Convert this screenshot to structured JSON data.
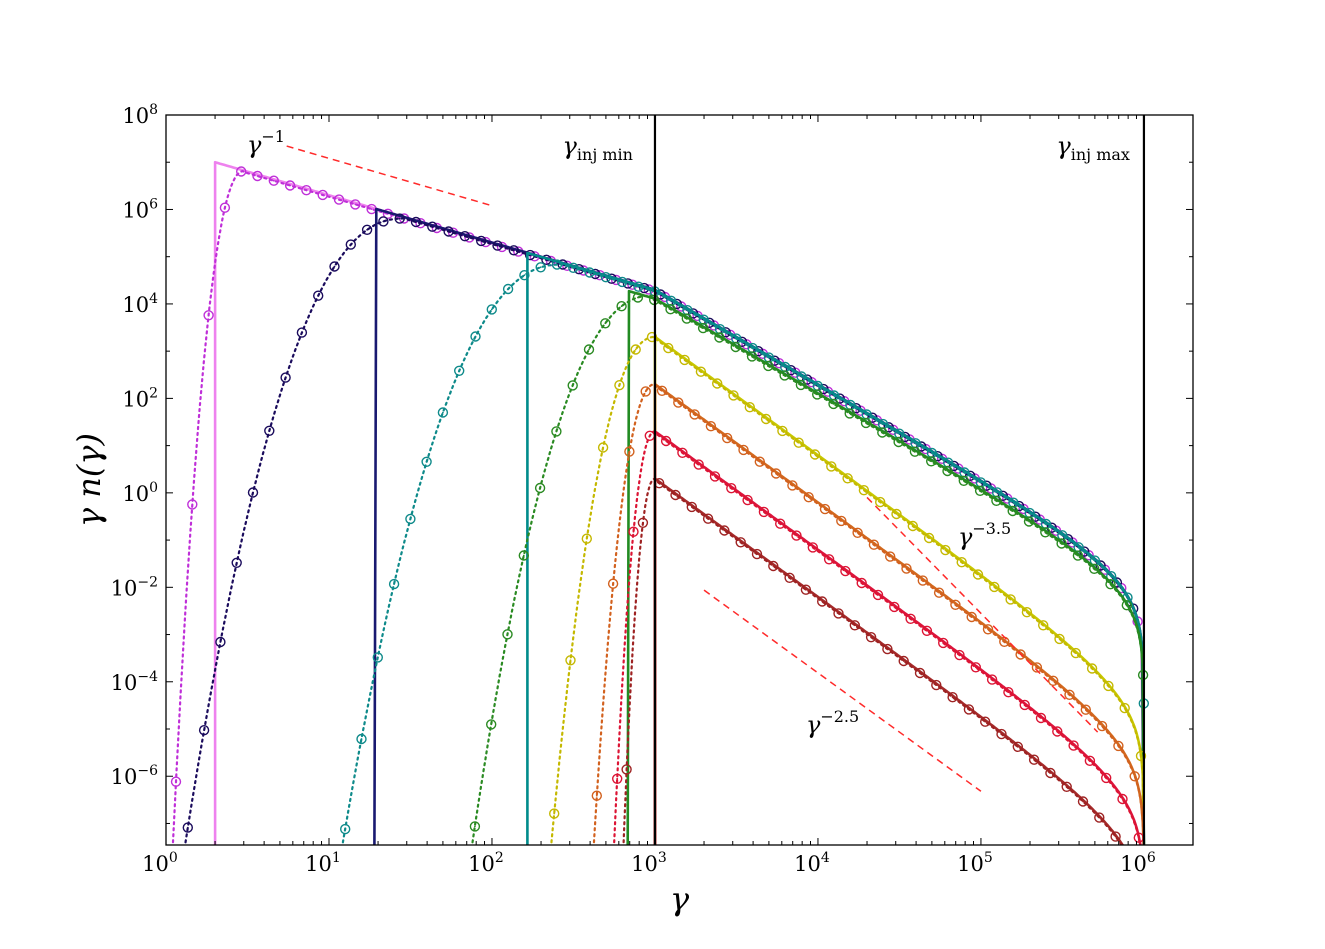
{
  "chart_data": {
    "type": "line",
    "xlabel": "γ",
    "ylabel": "γ n(γ)",
    "xscale": "log",
    "yscale": "log",
    "xlim": [
      1,
      2000000
    ],
    "ylim": [
      3.5e-08,
      100000000.0
    ],
    "grid": false,
    "legend": "none",
    "x_ticks": [
      {
        "base": "10",
        "exp": "0",
        "value": 1
      },
      {
        "base": "10",
        "exp": "1",
        "value": 10
      },
      {
        "base": "10",
        "exp": "2",
        "value": 100
      },
      {
        "base": "10",
        "exp": "3",
        "value": 1000
      },
      {
        "base": "10",
        "exp": "4",
        "value": 10000
      },
      {
        "base": "10",
        "exp": "5",
        "value": 100000
      },
      {
        "base": "10",
        "exp": "6",
        "value": 1000000
      }
    ],
    "y_ticks": [
      {
        "base": "10",
        "exp": "−6",
        "value": 1e-06
      },
      {
        "base": "10",
        "exp": "−4",
        "value": 0.0001
      },
      {
        "base": "10",
        "exp": "−2",
        "value": 0.01
      },
      {
        "base": "10",
        "exp": "0",
        "value": 1
      },
      {
        "base": "10",
        "exp": "2",
        "value": 100
      },
      {
        "base": "10",
        "exp": "4",
        "value": 10000
      },
      {
        "base": "10",
        "exp": "6",
        "value": 1000000
      },
      {
        "base": "10",
        "exp": "8",
        "value": 100000000
      }
    ],
    "vlines": [
      {
        "x": 1000,
        "label_main": "γ",
        "label_sub": "inj min",
        "color": "#000000"
      },
      {
        "x": 1000000,
        "label_main": "γ",
        "label_sub": "inj max",
        "color": "#000000"
      }
    ],
    "reference_lines": [
      {
        "label_main": "γ",
        "label_exp": "−1",
        "color": "#ff2a2a",
        "x": [
          5.5,
          100
        ],
        "y": [
          22000000.0,
          1200000.0
        ]
      },
      {
        "label_main": "γ",
        "label_exp": "−3.5",
        "color": "#ff2a2a",
        "x": [
          20000,
          520000
        ],
        "y": [
          0.8,
          8.6e-06
        ]
      },
      {
        "label_main": "γ",
        "label_exp": "−2.5",
        "color": "#ff2a2a",
        "x": [
          2000,
          100000
        ],
        "y": [
          0.0087,
          4.8e-07
        ]
      }
    ],
    "series": [
      {
        "color": "#ee82ee",
        "marker_color": "#bf2fd8",
        "gmin": 2,
        "gmax": 1000,
        "peak": 10000000.0,
        "p": 2,
        "cut": true,
        "cut_end": 1000000,
        "dot_start": 1.1,
        "dot_peak_x": 3,
        "dot_peak_y": 6500000
      },
      {
        "color": "#191970",
        "marker_color": "#1a0b5c",
        "gmin": 19,
        "gmax": 1000,
        "peak": 1050000,
        "p": 2,
        "cut": true,
        "cut_end": 1000000,
        "dot_start": 1.3,
        "dot_peak_x": 28,
        "dot_peak_y": 640000
      },
      {
        "color": "#008b8b",
        "marker_color": "#0e8a8a",
        "gmin": 165,
        "gmax": 1000,
        "peak": 120000,
        "p": 2,
        "cut": true,
        "cut_end": 1000000,
        "dot_start": 12,
        "dot_peak_x": 260,
        "dot_peak_y": 68000
      },
      {
        "color": "#228b22",
        "marker_color": "#2a8a22",
        "gmin": 680,
        "gmax": 1000,
        "peak": 19000,
        "p": 2,
        "cut": true,
        "cut_end": 1000000,
        "dot_start": 75,
        "dot_peak_x": 950,
        "dot_peak_y": 15000
      },
      {
        "color": "#c8c800",
        "marker_color": "#c4b800",
        "gmin": 1000,
        "gmax": 1000,
        "peak": 2000,
        "p": 2.5,
        "cut": true,
        "cut_end": 1000000,
        "dot_start": 230,
        "dot_peak_x": 1000,
        "dot_peak_y": 2000
      },
      {
        "color": "#d2691e",
        "marker_color": "#d2611e",
        "gmin": 1000,
        "gmax": 1000,
        "peak": 200,
        "p": 2.5,
        "cut": true,
        "cut_end": 1000000,
        "dot_start": 420,
        "dot_peak_x": 1000,
        "dot_peak_y": 200
      },
      {
        "color": "#dc143c",
        "marker_color": "#dc1434",
        "gmin": 1000,
        "gmax": 1000,
        "peak": 20,
        "p": 2.5,
        "cut": true,
        "cut_end": 1000000,
        "dot_start": 560,
        "dot_peak_x": 1000,
        "dot_peak_y": 20
      },
      {
        "color": "#a52a2a",
        "marker_color": "#9e2222",
        "gmin": 1000,
        "gmax": 1000,
        "peak": 2,
        "p": 2.5,
        "cut": true,
        "cut_end": 1000000,
        "dot_start": 640,
        "dot_peak_x": 1000,
        "dot_peak_y": 2
      }
    ]
  }
}
